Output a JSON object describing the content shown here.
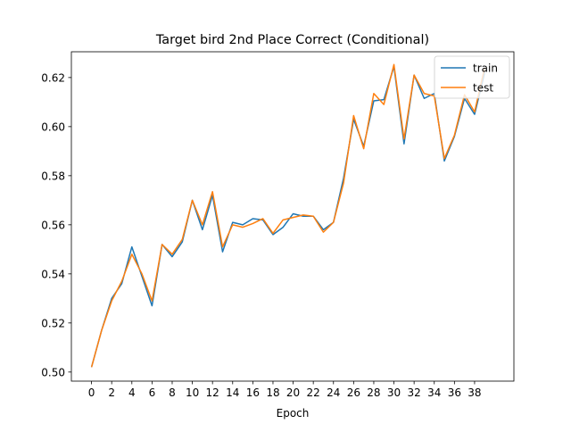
{
  "chart_data": {
    "type": "line",
    "title": "Target bird 2nd Place Correct (Conditional)",
    "xlabel": "Epoch",
    "ylabel": "",
    "xlim": [
      -2.0,
      41.9
    ],
    "ylim": [
      0.4963,
      0.6305
    ],
    "x": [
      0,
      1,
      2,
      3,
      4,
      5,
      6,
      7,
      8,
      9,
      10,
      11,
      12,
      13,
      14,
      15,
      16,
      17,
      18,
      19,
      20,
      21,
      22,
      23,
      24,
      25,
      26,
      27,
      28,
      29,
      30,
      31,
      32,
      33,
      34,
      35,
      36,
      37,
      38,
      39
    ],
    "xticks": [
      0,
      2,
      4,
      6,
      8,
      10,
      12,
      14,
      16,
      18,
      20,
      22,
      24,
      26,
      28,
      30,
      32,
      34,
      36,
      38
    ],
    "xtick_labels": [
      "0",
      "2",
      "4",
      "6",
      "8",
      "10",
      "12",
      "14",
      "16",
      "18",
      "20",
      "22",
      "24",
      "26",
      "28",
      "30",
      "32",
      "34",
      "36",
      "38"
    ],
    "yticks": [
      0.5,
      0.52,
      0.54,
      0.56,
      0.58,
      0.6,
      0.62
    ],
    "ytick_labels": [
      "0.50",
      "0.52",
      "0.54",
      "0.56",
      "0.58",
      "0.60",
      "0.62"
    ],
    "grid": false,
    "legend_position": "top-right",
    "series": [
      {
        "name": "train",
        "color": "#1f77b4",
        "values": [
          0.502,
          0.517,
          0.53,
          0.536,
          0.551,
          0.539,
          0.527,
          0.552,
          0.547,
          0.553,
          0.57,
          0.558,
          0.572,
          0.549,
          0.561,
          0.56,
          0.5625,
          0.562,
          0.556,
          0.559,
          0.5645,
          0.5635,
          0.5635,
          0.558,
          0.561,
          0.579,
          0.603,
          0.592,
          0.6105,
          0.611,
          0.6245,
          0.593,
          0.621,
          0.6115,
          0.6135,
          0.586,
          0.596,
          0.6115,
          0.605,
          0.622
        ]
      },
      {
        "name": "test",
        "color": "#ff7f0e",
        "values": [
          0.502,
          0.517,
          0.529,
          0.537,
          0.548,
          0.54,
          0.529,
          0.552,
          0.548,
          0.554,
          0.57,
          0.56,
          0.5735,
          0.551,
          0.56,
          0.559,
          0.5605,
          0.5625,
          0.5565,
          0.562,
          0.563,
          0.564,
          0.5635,
          0.557,
          0.561,
          0.577,
          0.6045,
          0.591,
          0.6135,
          0.609,
          0.6253,
          0.595,
          0.621,
          0.6135,
          0.6125,
          0.587,
          0.5965,
          0.613,
          0.606,
          0.624
        ]
      }
    ]
  }
}
